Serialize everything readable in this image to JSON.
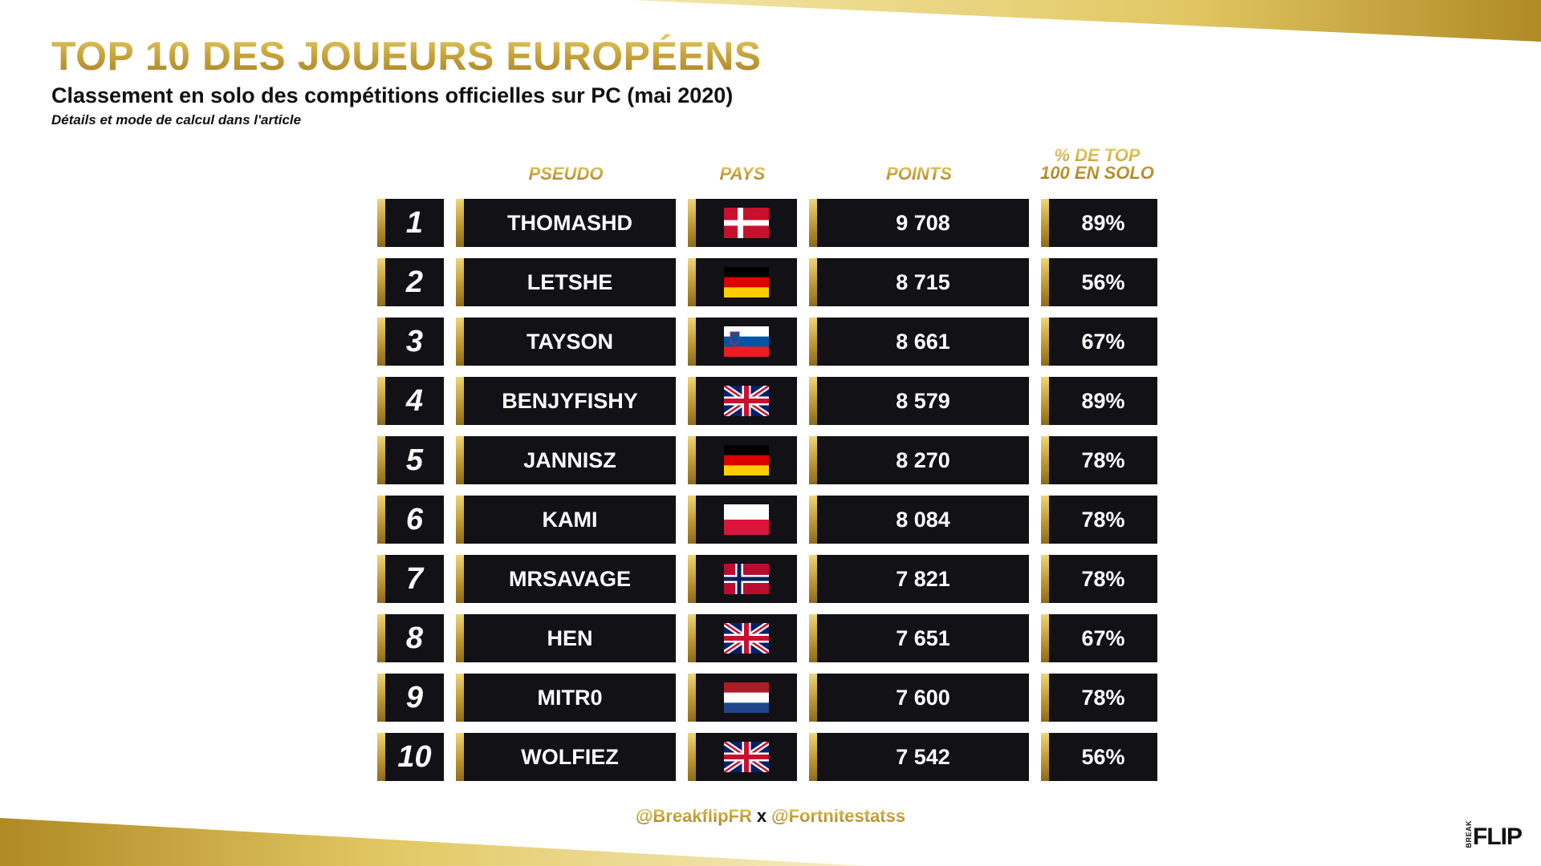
{
  "header": {
    "title": "TOP 10 DES JOUEURS EUROPÉENS",
    "subtitle": "Classement en solo des compétitions officielles sur PC (mai 2020)",
    "note": "Détails et mode de calcul dans l'article"
  },
  "columns": {
    "pseudo": "PSEUDO",
    "pays": "PAYS",
    "points": "POINTS",
    "pct_line1": "% DE TOP",
    "pct_line2": "100 EN SOLO"
  },
  "rows": [
    {
      "rank": "1",
      "pseudo": "THOMASHD",
      "country": "denmark",
      "points": "9 708",
      "pct": "89%"
    },
    {
      "rank": "2",
      "pseudo": "LETSHE",
      "country": "germany",
      "points": "8 715",
      "pct": "56%"
    },
    {
      "rank": "3",
      "pseudo": "TAYSON",
      "country": "slovenia",
      "points": "8 661",
      "pct": "67%"
    },
    {
      "rank": "4",
      "pseudo": "BENJYFISHY",
      "country": "united-kingdom",
      "points": "8 579",
      "pct": "89%"
    },
    {
      "rank": "5",
      "pseudo": "JANNISZ",
      "country": "germany",
      "points": "8 270",
      "pct": "78%"
    },
    {
      "rank": "6",
      "pseudo": "KAMI",
      "country": "poland",
      "points": "8 084",
      "pct": "78%"
    },
    {
      "rank": "7",
      "pseudo": "MRSAVAGE",
      "country": "norway",
      "points": "7 821",
      "pct": "78%"
    },
    {
      "rank": "8",
      "pseudo": "HEN",
      "country": "united-kingdom",
      "points": "7 651",
      "pct": "67%"
    },
    {
      "rank": "9",
      "pseudo": "MITR0",
      "country": "netherlands",
      "points": "7 600",
      "pct": "78%"
    },
    {
      "rank": "10",
      "pseudo": "WOLFIEZ",
      "country": "united-kingdom",
      "points": "7 542",
      "pct": "56%"
    }
  ],
  "footer": {
    "handle1": "@BreakflipFR",
    "separator": "x",
    "handle2": "@Fortnitestatss"
  },
  "logo": {
    "small": "BREAK",
    "big": "FLIP"
  },
  "colors": {
    "gold": "#c9a53d",
    "cell": "#111116"
  }
}
